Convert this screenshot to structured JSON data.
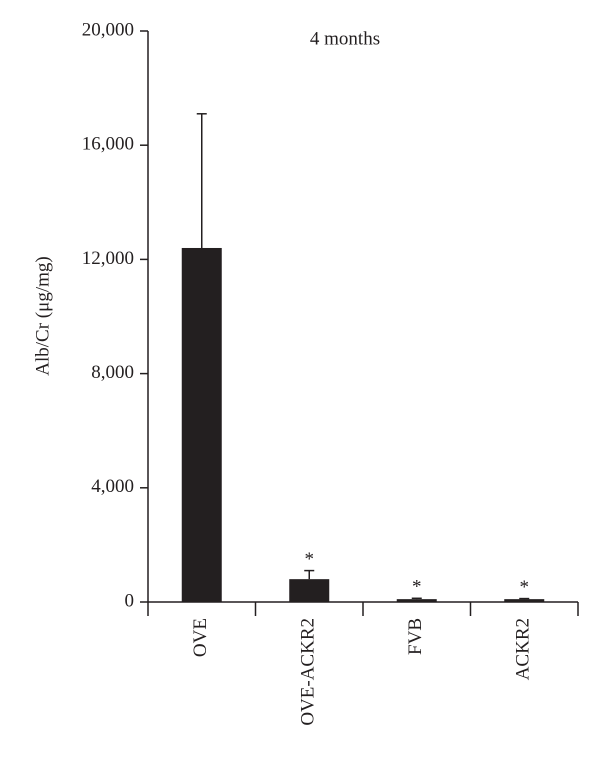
{
  "chart_data": {
    "type": "bar",
    "title": "4 months",
    "y_label": "Alb/Cr (μg/mg)",
    "categories": [
      "OVE",
      "OVE-ACKR2",
      "FVB",
      "ACKR2"
    ],
    "values": [
      12400,
      800,
      100,
      100
    ],
    "errors": [
      4700,
      300,
      30,
      20
    ],
    "color": "#231f20",
    "ylim": [
      0,
      20000
    ],
    "yticks": [
      0,
      {
        "value": 4000,
        "label": "4,000"
      },
      {
        "value": 8000,
        "label": "8,000"
      },
      {
        "value": 12000,
        "label": "12,000"
      },
      {
        "value": 16000,
        "label": "16,000"
      },
      {
        "value": 20000,
        "label": "20,000"
      }
    ],
    "annotations": [
      {
        "text": "*",
        "x": "OVE-ACKR2"
      },
      {
        "text": "*",
        "x": "FVB"
      },
      {
        "text": "*",
        "x": "ACKR2"
      }
    ]
  }
}
